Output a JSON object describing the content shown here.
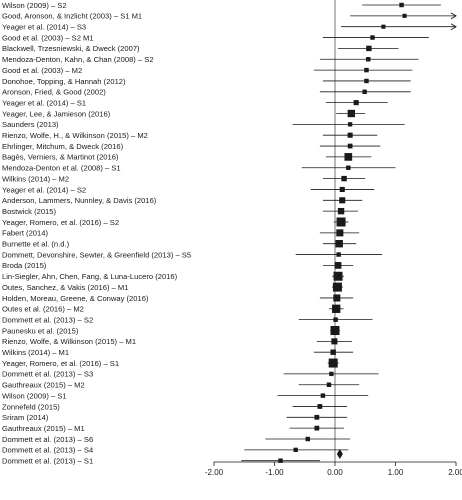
{
  "chart_data": {
    "type": "forest",
    "title": "",
    "xlabel": "",
    "ylabel": "",
    "xlim": [
      -2.0,
      2.0
    ],
    "x_ticks": [
      "-2.00",
      "-1.00",
      "0.00",
      "1.00",
      "2.00"
    ],
    "grid": false,
    "studies": [
      {
        "label": "Wilson (2009) – S2",
        "effect": 1.1,
        "lower": 0.45,
        "upper": 1.75,
        "weight": 0.3
      },
      {
        "label": "Good, Aronson, & Inzlicht (2003) – S1 M1",
        "effect": 1.15,
        "lower": 0.25,
        "upper": 2.0,
        "weight": 0.25,
        "arrow_right": true
      },
      {
        "label": "Yeager et al. (2014) – S3",
        "effect": 0.8,
        "lower": 0.1,
        "upper": 2.0,
        "weight": 0.25,
        "arrow_right": true
      },
      {
        "label": "Good et al. (2003) – S2 M1",
        "effect": 0.62,
        "lower": -0.2,
        "upper": 1.55,
        "weight": 0.3
      },
      {
        "label": "Blackwell, Trzesniewski, & Dweck (2007)",
        "effect": 0.56,
        "lower": 0.05,
        "upper": 1.05,
        "weight": 0.45
      },
      {
        "label": "Mendoza-Denton, Kahn, & Chan (2008) – S2",
        "effect": 0.55,
        "lower": -0.25,
        "upper": 1.38,
        "weight": 0.3
      },
      {
        "label": "Good et al. (2003) – M2",
        "effect": 0.52,
        "lower": -0.35,
        "upper": 1.28,
        "weight": 0.3
      },
      {
        "label": "Donohoe, Topping, & Hannah (2012)",
        "effect": 0.52,
        "lower": -0.2,
        "upper": 1.25,
        "weight": 0.3
      },
      {
        "label": "Aronson, Fried, & Good (2002)",
        "effect": 0.49,
        "lower": -0.25,
        "upper": 1.25,
        "weight": 0.3
      },
      {
        "label": "Yeager et al. (2014) – S1",
        "effect": 0.35,
        "lower": -0.15,
        "upper": 0.87,
        "weight": 0.4
      },
      {
        "label": "Yeager, Lee, & Jamieson (2016)",
        "effect": 0.27,
        "lower": 0.02,
        "upper": 0.5,
        "weight": 0.75
      },
      {
        "label": "Saunders (2013)",
        "effect": 0.25,
        "lower": -0.7,
        "upper": 1.15,
        "weight": 0.28
      },
      {
        "label": "Rienzo, Wolfe, H., & Wilkinson (2015) – M2",
        "effect": 0.25,
        "lower": -0.2,
        "upper": 0.7,
        "weight": 0.4
      },
      {
        "label": "Ehrlinger, Mitchum, & Dweck (2016)",
        "effect": 0.25,
        "lower": -0.25,
        "upper": 0.75,
        "weight": 0.35
      },
      {
        "label": "Bagès, Verniers, & Martinot (2016)",
        "effect": 0.22,
        "lower": -0.15,
        "upper": 0.6,
        "weight": 0.8
      },
      {
        "label": "Mendoza-Denton et al. (2008) – S1",
        "effect": 0.22,
        "lower": -0.55,
        "upper": 1.0,
        "weight": 0.3
      },
      {
        "label": "Wilkins (2014) – M2",
        "effect": 0.15,
        "lower": -0.2,
        "upper": 0.5,
        "weight": 0.45
      },
      {
        "label": "Yeager et al. (2014) – S2",
        "effect": 0.12,
        "lower": -0.4,
        "upper": 0.65,
        "weight": 0.4
      },
      {
        "label": "Anderson, Lammers, Nunnley, & Davis (2016)",
        "effect": 0.12,
        "lower": -0.2,
        "upper": 0.45,
        "weight": 0.55
      },
      {
        "label": "Bostwick (2015)",
        "effect": 0.1,
        "lower": -0.2,
        "upper": 0.38,
        "weight": 0.6
      },
      {
        "label": "Yeager, Romero, et al. (2016) – S2",
        "effect": 0.1,
        "lower": -0.02,
        "upper": 0.22,
        "weight": 1.0
      },
      {
        "label": "Fabert (2014)",
        "effect": 0.08,
        "lower": -0.25,
        "upper": 0.4,
        "weight": 0.7
      },
      {
        "label": "Burnette et al. (n.d.)",
        "effect": 0.07,
        "lower": -0.2,
        "upper": 0.35,
        "weight": 0.75
      },
      {
        "label": "Dommett, Devonshire, Sewter, & Greenfield (2013) – S5",
        "effect": 0.06,
        "lower": -0.65,
        "upper": 0.78,
        "weight": 0.3
      },
      {
        "label": "Broda (2015)",
        "effect": 0.05,
        "lower": -0.2,
        "upper": 0.3,
        "weight": 0.65
      },
      {
        "label": "Lin-Siegler, Ahn, Chen, Fang, & Luna-Lucero (2016)",
        "effect": 0.05,
        "lower": -0.05,
        "upper": 0.15,
        "weight": 1.0
      },
      {
        "label": "Outes, Sanchez, & Vakis (2016) – M1",
        "effect": 0.04,
        "lower": -0.05,
        "upper": 0.13,
        "weight": 1.0
      },
      {
        "label": "Holden, Moreau, Greene, & Conway (2016)",
        "effect": 0.03,
        "lower": -0.25,
        "upper": 0.3,
        "weight": 0.7
      },
      {
        "label": "Outes et al. (2016) – M2",
        "effect": 0.02,
        "lower": -0.1,
        "upper": 0.14,
        "weight": 0.9
      },
      {
        "label": "Dommett et al. (2013) – S2",
        "effect": 0.01,
        "lower": -0.6,
        "upper": 0.62,
        "weight": 0.3
      },
      {
        "label": "Paunesku et al. (2015)",
        "effect": 0.0,
        "lower": -0.08,
        "upper": 0.08,
        "weight": 1.0
      },
      {
        "label": "Rienzo, Wolfe, & Wilkinson (2015) – M1",
        "effect": -0.01,
        "lower": -0.3,
        "upper": 0.28,
        "weight": 0.55
      },
      {
        "label": "Wilkins (2014) – M1",
        "effect": -0.03,
        "lower": -0.35,
        "upper": 0.3,
        "weight": 0.45
      },
      {
        "label": "Yeager, Romero, et al. (2016) – S1",
        "effect": -0.03,
        "lower": -0.12,
        "upper": 0.06,
        "weight": 1.0
      },
      {
        "label": "Dommett et al. (2013) – S3",
        "effect": -0.06,
        "lower": -0.85,
        "upper": 0.72,
        "weight": 0.28
      },
      {
        "label": "Gauthreaux (2015) – M2",
        "effect": -0.1,
        "lower": -0.6,
        "upper": 0.4,
        "weight": 0.3
      },
      {
        "label": "Wilson (2009) – S1",
        "effect": -0.2,
        "lower": -0.95,
        "upper": 0.55,
        "weight": 0.3
      },
      {
        "label": "Zonnefeld (2015)",
        "effect": -0.25,
        "lower": -0.7,
        "upper": 0.2,
        "weight": 0.35
      },
      {
        "label": "Sriram (2014)",
        "effect": -0.3,
        "lower": -0.8,
        "upper": 0.2,
        "weight": 0.35
      },
      {
        "label": "Gauthreaux (2015) – M1",
        "effect": -0.3,
        "lower": -0.75,
        "upper": 0.15,
        "weight": 0.35
      },
      {
        "label": "Dommett et al. (2013) – S6",
        "effect": -0.45,
        "lower": -1.15,
        "upper": 0.25,
        "weight": 0.3
      },
      {
        "label": "Dommett et al. (2013) – S4",
        "effect": -0.65,
        "lower": -1.5,
        "upper": 0.22,
        "weight": 0.28
      },
      {
        "label": "Dommett et al. (2013) – S1",
        "effect": -0.9,
        "lower": -1.55,
        "upper": -0.25,
        "weight": 0.3
      }
    ],
    "summary": {
      "effect": 0.08,
      "lower": 0.03,
      "upper": 0.13
    }
  }
}
